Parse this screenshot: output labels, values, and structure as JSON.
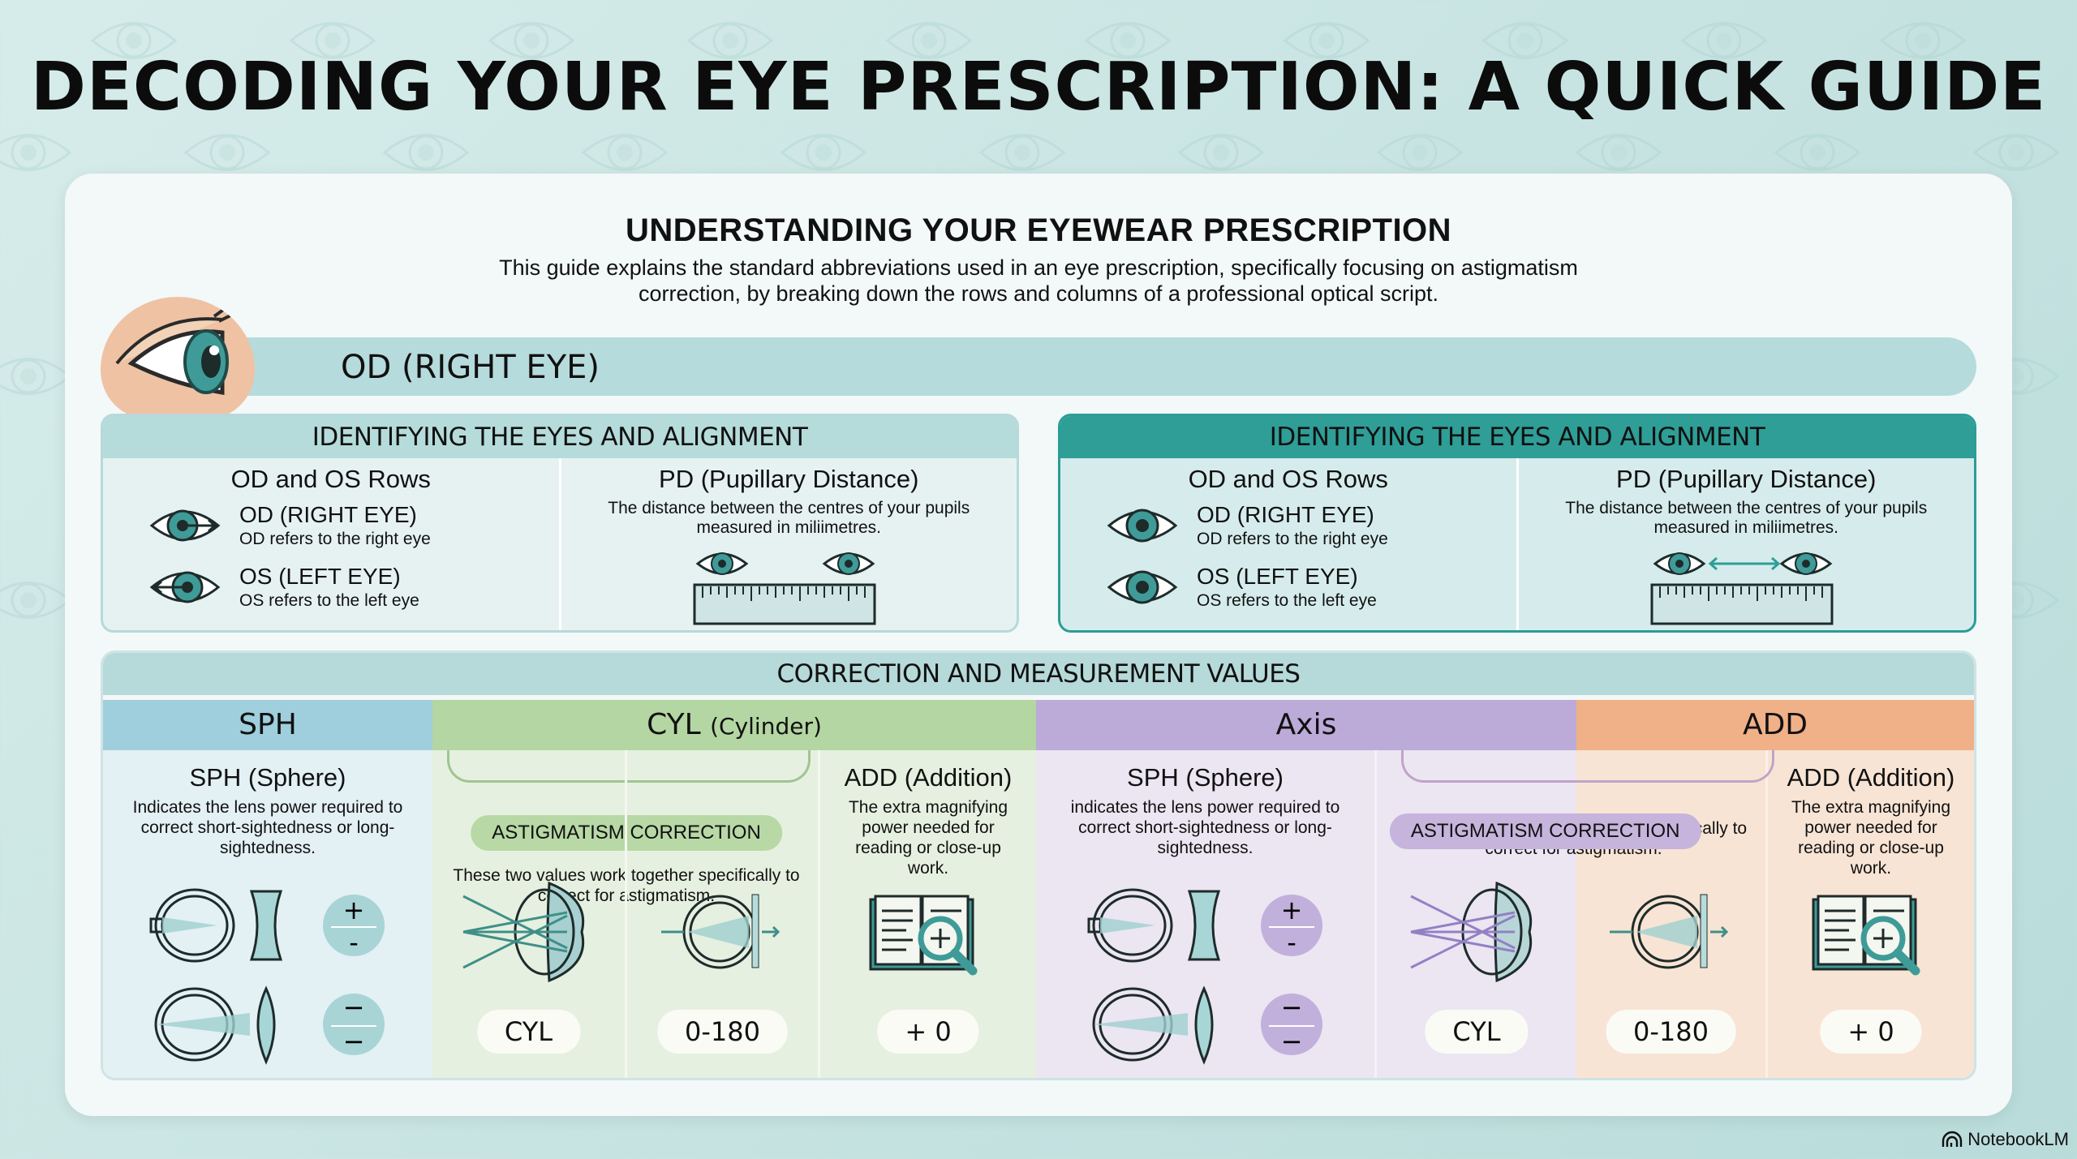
{
  "title": "DECODING YOUR EYE PRESCRIPTION: A QUICK GUIDE",
  "card": {
    "title": "UNDERSTANDING YOUR EYEWEAR PRESCRIPTION",
    "description": "This guide explains the standard abbreviations used in an eye prescription, specifically focusing on astigmatism correction, by breaking down the rows and columns of a professional optical script."
  },
  "od_band": {
    "label": "OD (RIGHT EYE)"
  },
  "panels": [
    {
      "header": "IDENTIFYING THE EYES AND ALIGNMENT",
      "left": {
        "title": "OD and OS Rows",
        "rows": [
          {
            "label": "OD (RIGHT EYE)",
            "desc": "OD refers to the right eye"
          },
          {
            "label": "OS (LEFT EYE)",
            "desc": "OS refers to the left eye"
          }
        ]
      },
      "right": {
        "title": "PD (Pupillary Distance)",
        "desc": "The distance between the centres of your pupils measured in miliimetres."
      }
    },
    {
      "header": "IDENTIFYING THE EYES AND ALIGNMENT",
      "left": {
        "title": "OD and OS Rows",
        "rows": [
          {
            "label": "OD (RIGHT EYE)",
            "desc": "OD refers to the right eye"
          },
          {
            "label": "OS (LEFT EYE)",
            "desc": "OS refers to the left eye"
          }
        ]
      },
      "right": {
        "title": "PD (Pupillary Distance)",
        "desc": "The distance between the centres of your pupils measured in miliimetres."
      }
    }
  ],
  "correction": {
    "header": "CORRECTION AND MEASUREMENT VALUES",
    "columns": [
      {
        "label": "SPH",
        "suffix": "",
        "color": "#9fcfdc"
      },
      {
        "label": "CYL",
        "suffix": "(Cylinder)",
        "color": "#b4d6a2"
      },
      {
        "label": "Axis",
        "suffix": "",
        "color": "#bcaad8"
      },
      {
        "label": "ADD",
        "suffix": "",
        "color": "#f0b088"
      }
    ],
    "sph": {
      "title": "SPH (Sphere)",
      "desc": "Indicates the lens power required to correct short-sightedness or long-sightedness.",
      "signs": [
        "+",
        "−",
        "−",
        "−"
      ]
    },
    "sph2": {
      "title": "SPH (Sphere)",
      "desc": "indicates the lens power required to correct short-sightedness or long-sightedness.",
      "signs": [
        "+",
        "−",
        "−",
        "−"
      ]
    },
    "astigmatism": {
      "label": "ASTIGMATISM CORRECTION",
      "desc": "These two values work together specifically to correct for astigmatism."
    },
    "add": {
      "title": "ADD (Addition)",
      "desc": "The extra magnifying power needed for reading or close-up work."
    },
    "values": {
      "cyl": "CYL",
      "axis": "0-180",
      "add": "+ 0"
    }
  },
  "footer": {
    "brand": "NotebookLM"
  }
}
